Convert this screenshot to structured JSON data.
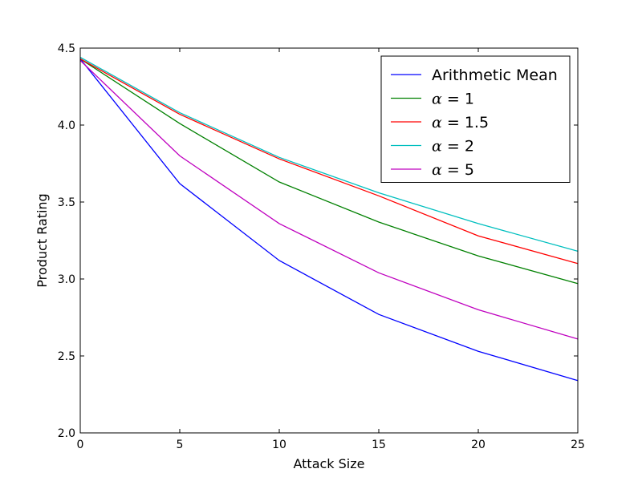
{
  "chart_data": {
    "type": "line",
    "title": "",
    "xlabel": "Attack Size",
    "ylabel": "Product Rating",
    "xlim": [
      0,
      25
    ],
    "ylim": [
      2.0,
      4.5
    ],
    "x_ticks": [
      "0",
      "5",
      "10",
      "15",
      "20",
      "25"
    ],
    "y_ticks": [
      "2.0",
      "2.5",
      "3.0",
      "3.5",
      "4.0",
      "4.5"
    ],
    "grid": false,
    "legend_position": "top-right",
    "x": [
      0,
      5,
      10,
      15,
      20,
      25
    ],
    "series": [
      {
        "name": "Arithmetic Mean",
        "color": "#0000ff",
        "values": [
          4.43,
          3.62,
          3.12,
          2.77,
          2.53,
          2.34
        ]
      },
      {
        "name": "= 1",
        "symbol": "α",
        "color": "#008000",
        "values": [
          4.43,
          4.01,
          3.63,
          3.37,
          3.15,
          2.97
        ]
      },
      {
        "name": "= 1.5",
        "symbol": "α",
        "color": "#ff0000",
        "values": [
          4.43,
          4.07,
          3.78,
          3.54,
          3.28,
          3.1
        ]
      },
      {
        "name": "= 2",
        "symbol": "α",
        "color": "#00bfbf",
        "values": [
          4.44,
          4.08,
          3.79,
          3.56,
          3.36,
          3.18
        ]
      },
      {
        "name": "= 5",
        "symbol": "α",
        "color": "#bf00bf",
        "values": [
          4.42,
          3.8,
          3.36,
          3.04,
          2.8,
          2.61
        ]
      }
    ]
  }
}
